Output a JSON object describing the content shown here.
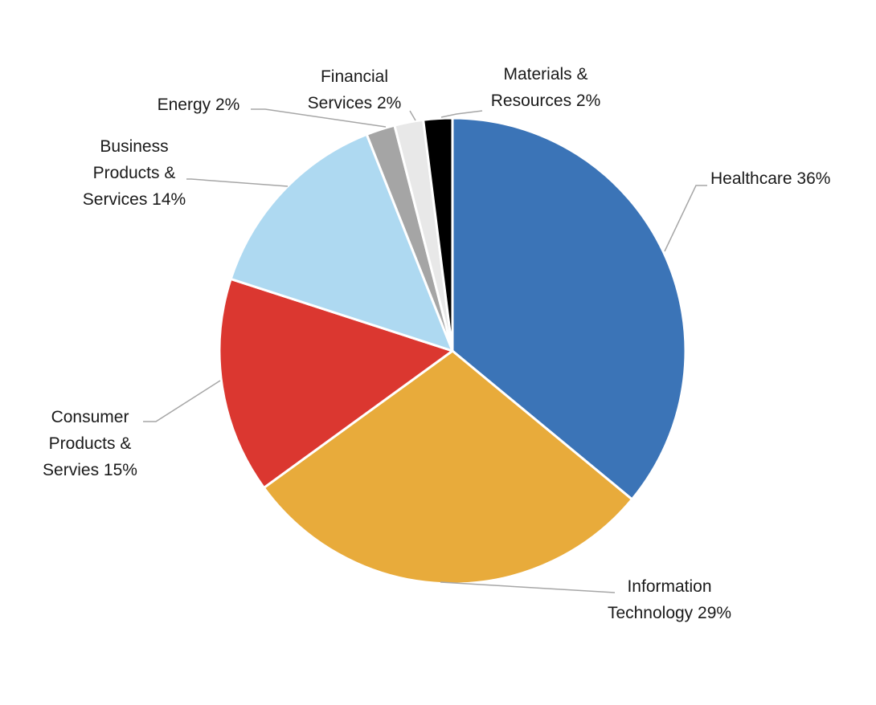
{
  "chart_data": {
    "type": "pie",
    "title": "",
    "start_angle_deg": 0,
    "direction": "clockwise",
    "slices": [
      {
        "key": "healthcare",
        "label_lines": [
          "Healthcare 36%"
        ],
        "value": 36,
        "color": "#3b74b7"
      },
      {
        "key": "information-technology",
        "label_lines": [
          "Information",
          "Technology 29%"
        ],
        "value": 29,
        "color": "#e8ab3b"
      },
      {
        "key": "consumer-products",
        "label_lines": [
          "Consumer",
          "Products &",
          "Servies 15%"
        ],
        "value": 15,
        "color": "#db3730"
      },
      {
        "key": "business-products",
        "label_lines": [
          "Business",
          "Products &",
          "Services 14%"
        ],
        "value": 14,
        "color": "#aed9f1"
      },
      {
        "key": "energy",
        "label_lines": [
          "Energy 2%"
        ],
        "value": 2,
        "color": "#a5a5a5"
      },
      {
        "key": "financial-services",
        "label_lines": [
          "Financial",
          "Services 2%"
        ],
        "value": 2,
        "color": "#e8e8e8"
      },
      {
        "key": "materials-resources",
        "label_lines": [
          "Materials &",
          "Resources 2%"
        ],
        "value": 2,
        "color": "#000000"
      }
    ]
  }
}
